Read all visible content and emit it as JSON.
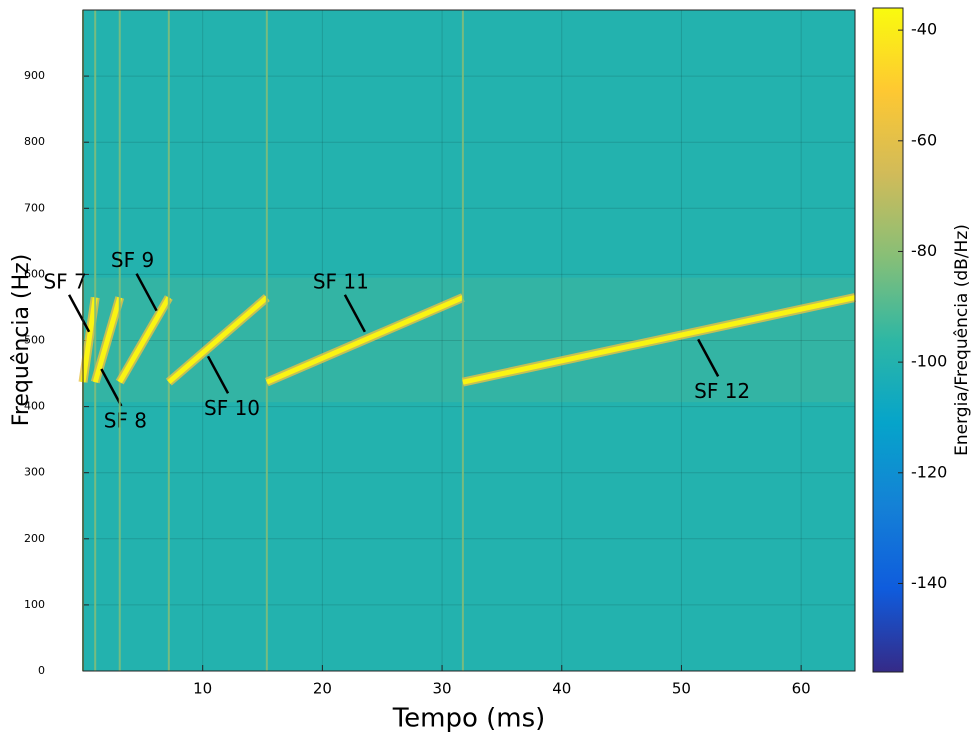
{
  "chart_data": {
    "type": "spectrogram",
    "xlabel": "Tempo (ms)",
    "ylabel": "Frequência (Hz)",
    "colorbar_label": "Energia/Frequência (dB/Hz)",
    "xlim": [
      0,
      64.5
    ],
    "xticks": [
      10,
      20,
      30,
      40,
      50,
      60
    ],
    "ylim": [
      0,
      1000
    ],
    "yticks": [
      0,
      100,
      200,
      300,
      400,
      500,
      600,
      700,
      800,
      900
    ],
    "clim": [
      -156,
      -36
    ],
    "cticks": [
      -40,
      -60,
      -80,
      -100,
      -120,
      -140
    ],
    "colormap": [
      "#352a87",
      "#0f5cdd",
      "#1481d6",
      "#06a4ca",
      "#2eb7a4",
      "#87bf77",
      "#d1bb59",
      "#fec832",
      "#f9fb0e"
    ],
    "grid": true,
    "background_db": -100,
    "peak_db": -38,
    "boundary_db": -82,
    "chirps": [
      {
        "name": "SF 7",
        "start": 0,
        "end": 1.02,
        "f_start": 437,
        "f_end": 565
      },
      {
        "name": "SF 8",
        "start": 1.02,
        "end": 3.07,
        "f_start": 437,
        "f_end": 565
      },
      {
        "name": "SF 9",
        "start": 3.07,
        "end": 7.17,
        "f_start": 437,
        "f_end": 565
      },
      {
        "name": "SF 10",
        "start": 7.17,
        "end": 15.36,
        "f_start": 437,
        "f_end": 565
      },
      {
        "name": "SF 11",
        "start": 15.36,
        "end": 31.74,
        "f_start": 437,
        "f_end": 565
      },
      {
        "name": "SF 12",
        "start": 31.74,
        "end": 64.5,
        "f_start": 437,
        "f_end": 565
      }
    ]
  }
}
